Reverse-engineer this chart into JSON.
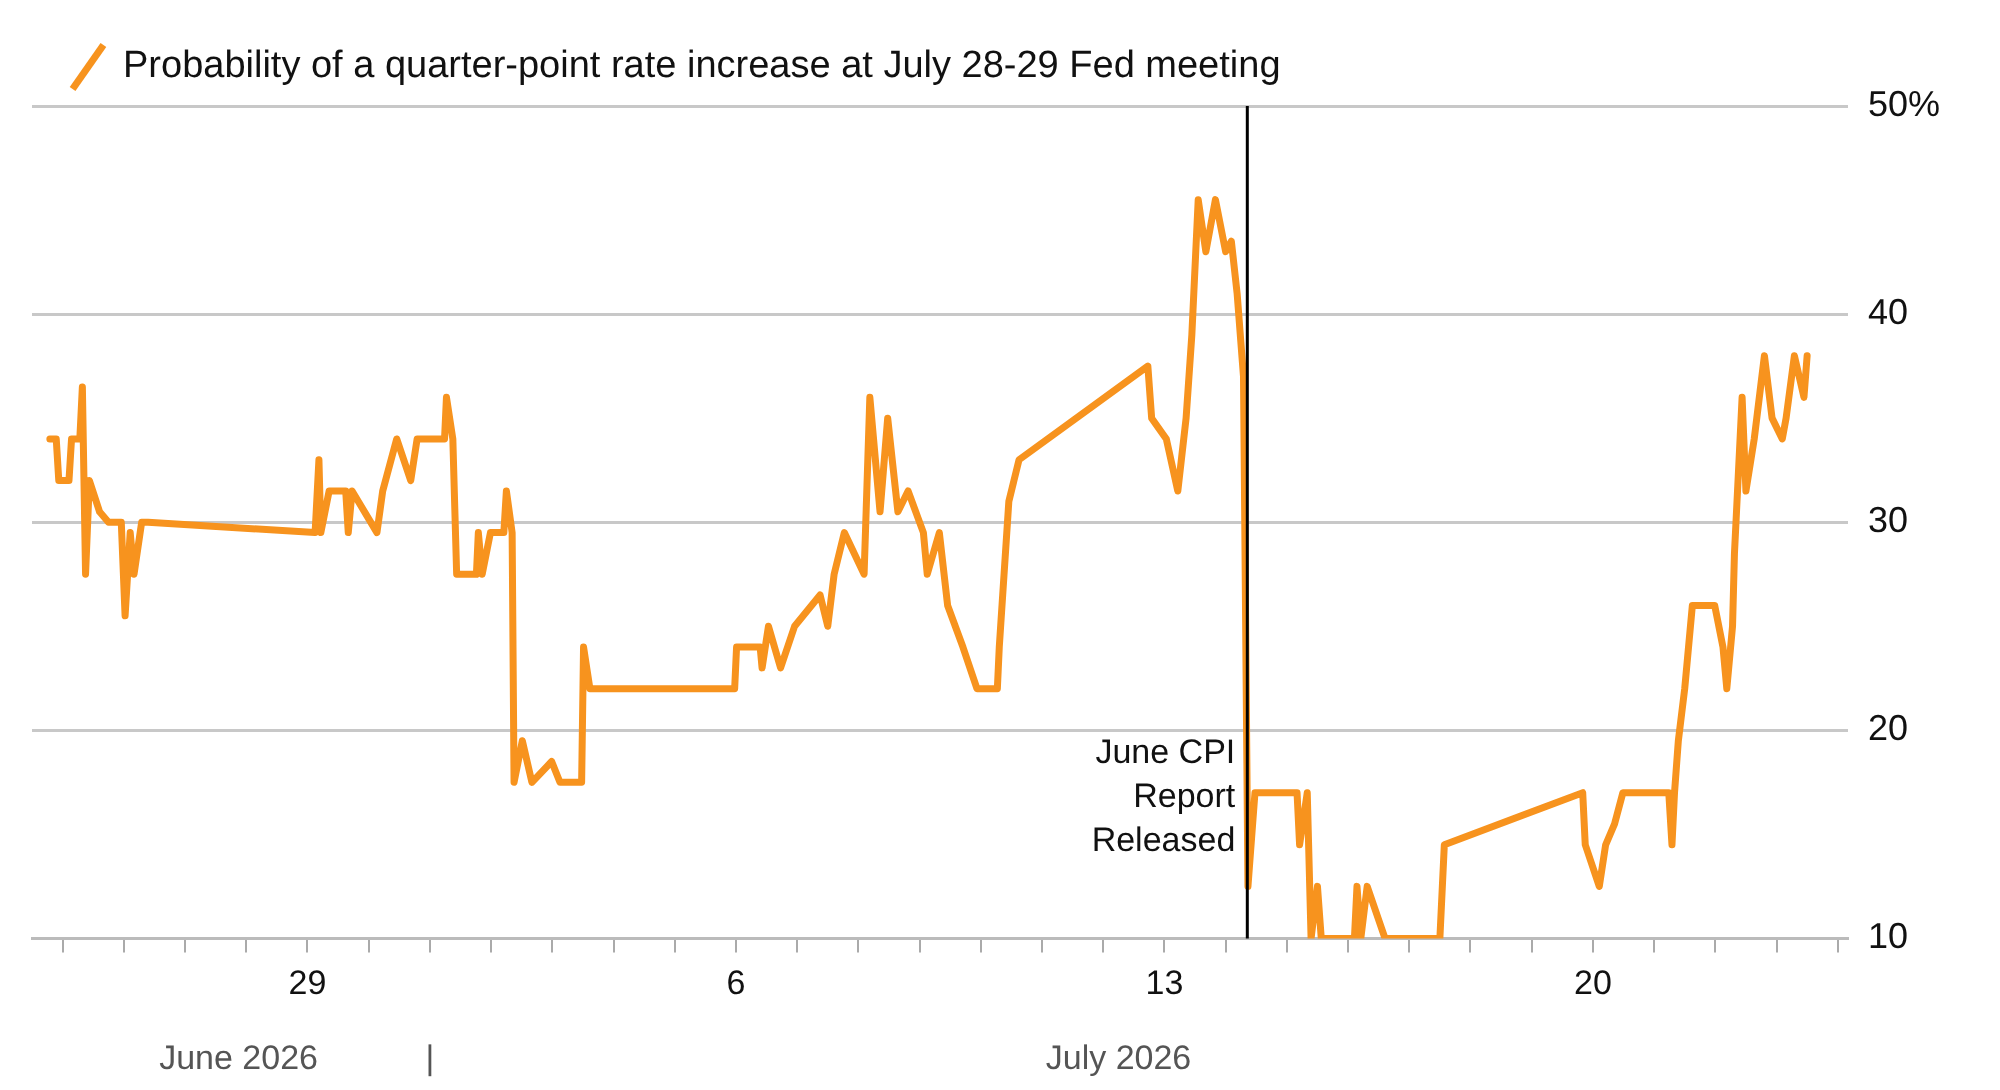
{
  "chart_data": {
    "type": "line",
    "legend": "top left",
    "grid": "y",
    "line_style": "solid",
    "marker": "none",
    "xlim": [
      "2026-06-24T12:00",
      "2026-07-24T04:00"
    ],
    "xticks": [
      {
        "value": "2026-06-25",
        "label": null
      },
      {
        "value": "2026-06-26",
        "label": null
      },
      {
        "value": "2026-06-27",
        "label": null
      },
      {
        "value": "2026-06-28",
        "label": null
      },
      {
        "value": "2026-06-29",
        "label": "29"
      },
      {
        "value": "2026-06-30",
        "label": null
      },
      {
        "value": "2026-07-01",
        "label": null
      },
      {
        "value": "2026-07-02",
        "label": null
      },
      {
        "value": "2026-07-03",
        "label": null
      },
      {
        "value": "2026-07-04",
        "label": null
      },
      {
        "value": "2026-07-05",
        "label": null
      },
      {
        "value": "2026-07-06",
        "label": "6"
      },
      {
        "value": "2026-07-07",
        "label": null
      },
      {
        "value": "2026-07-08",
        "label": null
      },
      {
        "value": "2026-07-09",
        "label": null
      },
      {
        "value": "2026-07-10",
        "label": null
      },
      {
        "value": "2026-07-11",
        "label": null
      },
      {
        "value": "2026-07-12",
        "label": null
      },
      {
        "value": "2026-07-13",
        "label": "13"
      },
      {
        "value": "2026-07-14",
        "label": null
      },
      {
        "value": "2026-07-15",
        "label": null
      },
      {
        "value": "2026-07-16",
        "label": null
      },
      {
        "value": "2026-07-17",
        "label": null
      },
      {
        "value": "2026-07-18",
        "label": null
      },
      {
        "value": "2026-07-19",
        "label": null
      },
      {
        "value": "2026-07-20",
        "label": "20"
      },
      {
        "value": "2026-07-21",
        "label": null
      },
      {
        "value": "2026-07-22",
        "label": null
      },
      {
        "value": "2026-07-23",
        "label": null
      },
      {
        "value": "2026-07-24",
        "label": null
      }
    ],
    "x2lim": [
      "2026-06-24T12:00",
      "2026-07-24T04:00"
    ],
    "x2ticks": [
      {
        "value": "2026-06-27T21:00",
        "label": "June 2026"
      },
      {
        "value": "2026-07-01",
        "label": "|"
      },
      {
        "value": "2026-07-12T06:00",
        "label": "July 2026"
      }
    ],
    "ylim": [
      10,
      50
    ],
    "yticks": [
      10,
      20,
      30,
      40,
      {
        "value": 50,
        "label": "50%"
      }
    ],
    "ref_lines": [
      {
        "axis": "x",
        "value": "2026-07-14T08:30",
        "label": "June CPI Report Released",
        "color": "#000000"
      }
    ],
    "series": [
      {
        "name": "Probability of a quarter-point rate increase at July 28-29 Fed meeting",
        "color": "#f7931e",
        "x": [
          "2026-06-24T19:00",
          "2026-06-24T21:30",
          "2026-06-24T22:30",
          "2026-06-25T02:30",
          "2026-06-25T03:30",
          "2026-06-25T06:45",
          "2026-06-25T07:45",
          "2026-06-25T09:00",
          "2026-06-25T10:30",
          "2026-06-25T14:30",
          "2026-06-25T18:00",
          "2026-06-25T23:00",
          "2026-06-26T00:30",
          "2026-06-26T02:30",
          "2026-06-26T04:00",
          "2026-06-26T07:00",
          "2026-06-26T09:30",
          "2026-06-29T03:00",
          "2026-06-29T04:30",
          "2026-06-29T05:15",
          "2026-06-29T08:30",
          "2026-06-29T15:00",
          "2026-06-29T16:00",
          "2026-06-29T17:30",
          "2026-06-30T03:15",
          "2026-06-30T05:30",
          "2026-06-30T11:00",
          "2026-06-30T16:30",
          "2026-06-30T19:00",
          "2026-07-01T05:45",
          "2026-07-01T06:30",
          "2026-07-01T09:00",
          "2026-07-01T10:30",
          "2026-07-01T18:15",
          "2026-07-01T19:00",
          "2026-07-01T20:30",
          "2026-07-01T23:45",
          "2026-07-02T05:00",
          "2026-07-02T06:00",
          "2026-07-02T08:15",
          "2026-07-02T09:00",
          "2026-07-02T12:15",
          "2026-07-02T16:00",
          "2026-07-02T23:45",
          "2026-07-03T03:00",
          "2026-07-03T11:30",
          "2026-07-03T12:15",
          "2026-07-03T14:45",
          "2026-07-05T23:30",
          "2026-07-06T00:15",
          "2026-07-06T09:30",
          "2026-07-06T10:15",
          "2026-07-06T12:45",
          "2026-07-06T17:30",
          "2026-07-06T23:00",
          "2026-07-07T09:00",
          "2026-07-07T12:00",
          "2026-07-07T14:30",
          "2026-07-07T18:30",
          "2026-07-08T02:15",
          "2026-07-08T04:30",
          "2026-07-08T08:30",
          "2026-07-08T11:30",
          "2026-07-08T15:30",
          "2026-07-08T19:30",
          "2026-07-09T01:30",
          "2026-07-09T03:00",
          "2026-07-09T07:45",
          "2026-07-09T11:00",
          "2026-07-09T17:00",
          "2026-07-09T22:30",
          "2026-07-10T06:30",
          "2026-07-10T07:15",
          "2026-07-10T11:00",
          "2026-07-10T15:00",
          "2026-07-12T17:30",
          "2026-07-12T19:00",
          "2026-07-13T00:45",
          "2026-07-13T05:15",
          "2026-07-13T08:30",
          "2026-07-13T10:45",
          "2026-07-13T13:15",
          "2026-07-13T16:15",
          "2026-07-13T20:00",
          "2026-07-14T00:00",
          "2026-07-14T02:15",
          "2026-07-14T04:30",
          "2026-07-14T07:00",
          "2026-07-14T08:45",
          "2026-07-14T11:30",
          "2026-07-15T04:00",
          "2026-07-15T05:00",
          "2026-07-15T08:00",
          "2026-07-15T09:30",
          "2026-07-15T12:00",
          "2026-07-15T13:30",
          "2026-07-16T02:30",
          "2026-07-16T03:30",
          "2026-07-16T05:00",
          "2026-07-16T07:30",
          "2026-07-16T14:30",
          "2026-07-17T12:00",
          "2026-07-17T13:45",
          "2026-07-19T20:00",
          "2026-07-19T21:00",
          "2026-07-20T02:30",
          "2026-07-20T05:00",
          "2026-07-20T08:30",
          "2026-07-20T11:45",
          "2026-07-21T05:45",
          "2026-07-21T07:00",
          "2026-07-21T08:00",
          "2026-07-21T09:30",
          "2026-07-21T12:00",
          "2026-07-21T15:00",
          "2026-07-21T23:45",
          "2026-07-22T03:00",
          "2026-07-22T04:30",
          "2026-07-22T06:45",
          "2026-07-22T07:30",
          "2026-07-22T10:30",
          "2026-07-22T12:00",
          "2026-07-22T15:15",
          "2026-07-22T19:15",
          "2026-07-22T22:15",
          "2026-07-23T02:15",
          "2026-07-23T03:45",
          "2026-07-23T07:00",
          "2026-07-23T10:45",
          "2026-07-23T12:00"
        ],
        "values": [
          34,
          34,
          32,
          32,
          34,
          34,
          36.5,
          27.5,
          32,
          30.5,
          30,
          30,
          25.5,
          29.5,
          27.5,
          30,
          30,
          29.5,
          33,
          29.5,
          31.5,
          31.5,
          29.5,
          31.5,
          29.5,
          31.5,
          34,
          32,
          34,
          34,
          36,
          34,
          27.5,
          27.5,
          29.5,
          27.5,
          29.5,
          29.5,
          31.5,
          29.5,
          17.5,
          19.5,
          17.5,
          18.5,
          17.5,
          17.5,
          24,
          22,
          22,
          24,
          24,
          23,
          25,
          23,
          25,
          26.5,
          25,
          27.5,
          29.5,
          27.5,
          36,
          30.5,
          35,
          30.5,
          31.5,
          29.5,
          27.5,
          29.5,
          26,
          24,
          22,
          22,
          24,
          31,
          33,
          37.5,
          35,
          34,
          31.5,
          35,
          39,
          45.5,
          43,
          45.5,
          43,
          43.5,
          41,
          37,
          12.5,
          17,
          17,
          14.5,
          17,
          10,
          12.5,
          10,
          10,
          12.5,
          10,
          12.5,
          10,
          10,
          14.5,
          17,
          14.5,
          12.5,
          14.5,
          15.5,
          17,
          17,
          14.5,
          17,
          19.5,
          22,
          26,
          26,
          24,
          22,
          25,
          28.5,
          36,
          31.5,
          34,
          38,
          35,
          34,
          35,
          38,
          36,
          38
        ]
      }
    ]
  }
}
